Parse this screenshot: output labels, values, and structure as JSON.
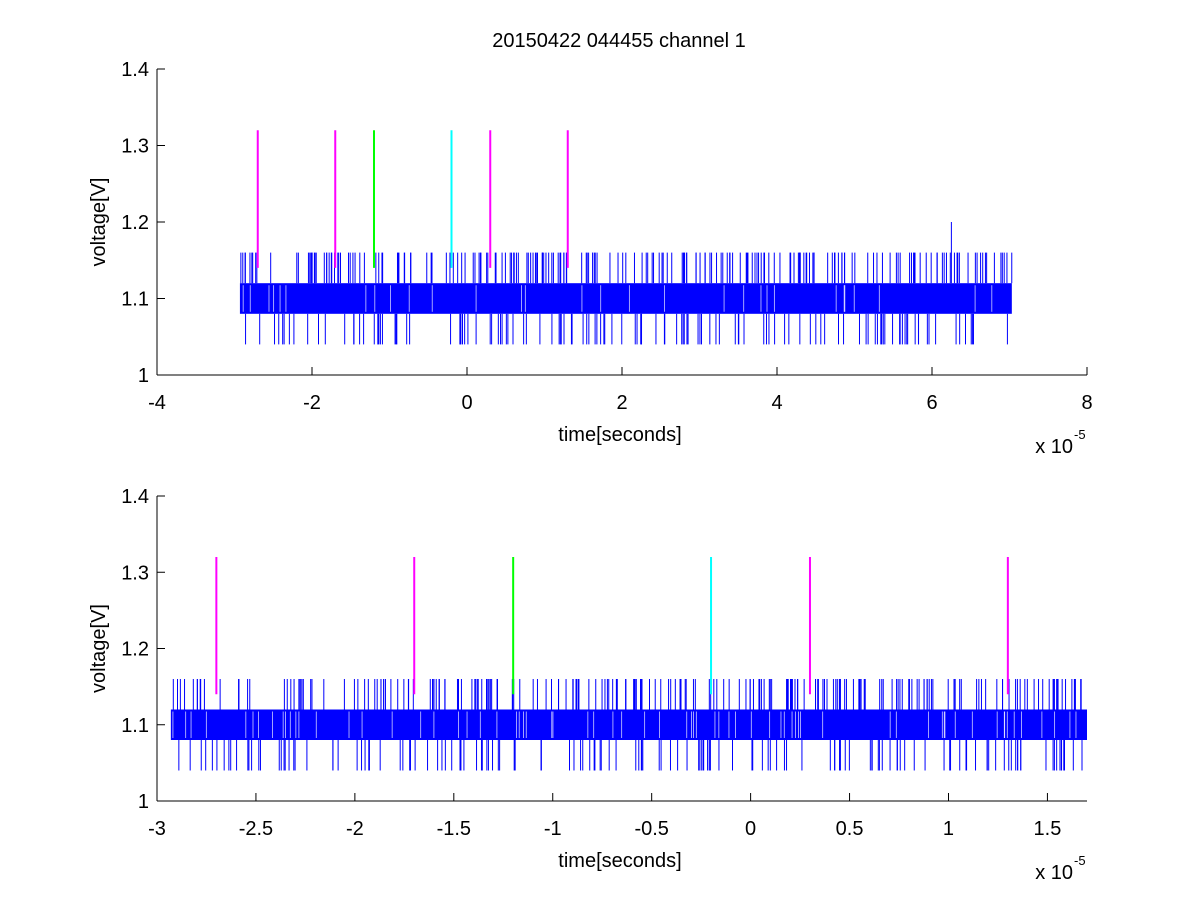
{
  "figure": {
    "title": "20150422 044455 channel 1"
  },
  "chart_data": [
    {
      "type": "line",
      "title": "20150422 044455 channel 1",
      "xlabel": "time[seconds]",
      "ylabel": "voltage[V]",
      "xscale_label": "x 10",
      "xscale_exponent": "-5",
      "xlim": [
        -4e-05,
        8e-05
      ],
      "ylim": [
        1.0,
        1.4
      ],
      "xticks": [
        -4,
        -2,
        0,
        2,
        4,
        6,
        8
      ],
      "xtick_labels": [
        "-4",
        "-2",
        "0",
        "2",
        "4",
        "6",
        "8"
      ],
      "yticks": [
        1.0,
        1.1,
        1.2,
        1.3,
        1.4
      ],
      "ytick_labels": [
        "1",
        "1.1",
        "1.2",
        "1.3",
        "1.4"
      ],
      "grid": false,
      "signal": {
        "color": "#0000ff",
        "x_start": -2.93e-05,
        "x_end": 7.03e-05,
        "band_low": 1.08,
        "band_high": 1.12,
        "upper_spike_level": 1.16,
        "lower_spike_level": 1.04,
        "max_spike": {
          "x": 6.25e-05,
          "y": 1.2
        }
      },
      "markers": [
        {
          "x": -2.7e-05,
          "y_low": 1.14,
          "y_high": 1.32,
          "color": "#ff00ff"
        },
        {
          "x": -1.7e-05,
          "y_low": 1.14,
          "y_high": 1.32,
          "color": "#ff00ff"
        },
        {
          "x": -1.2e-05,
          "y_low": 1.14,
          "y_high": 1.32,
          "color": "#00ff00"
        },
        {
          "x": -2e-06,
          "y_low": 1.14,
          "y_high": 1.32,
          "color": "#00ffff"
        },
        {
          "x": 3e-06,
          "y_low": 1.14,
          "y_high": 1.32,
          "color": "#ff00ff"
        },
        {
          "x": 1.3e-05,
          "y_low": 1.14,
          "y_high": 1.32,
          "color": "#ff00ff"
        }
      ]
    },
    {
      "type": "line",
      "title": "",
      "xlabel": "time[seconds]",
      "ylabel": "voltage[V]",
      "xscale_label": "x 10",
      "xscale_exponent": "-5",
      "xlim": [
        -3e-05,
        1.7e-05
      ],
      "ylim": [
        1.0,
        1.4
      ],
      "xticks": [
        -3,
        -2.5,
        -2,
        -1.5,
        -1,
        -0.5,
        0,
        0.5,
        1,
        1.5
      ],
      "xtick_labels": [
        "-3",
        "-2.5",
        "-2",
        "-1.5",
        "-1",
        "-0.5",
        "0",
        "0.5",
        "1",
        "1.5"
      ],
      "yticks": [
        1.0,
        1.1,
        1.2,
        1.3,
        1.4
      ],
      "ytick_labels": [
        "1",
        "1.1",
        "1.2",
        "1.3",
        "1.4"
      ],
      "grid": false,
      "signal": {
        "color": "#0000ff",
        "x_start": -2.93e-05,
        "x_end": 1.7e-05,
        "band_low": 1.08,
        "band_high": 1.12,
        "upper_spike_level": 1.16,
        "lower_spike_level": 1.04
      },
      "markers": [
        {
          "x": -2.7e-05,
          "y_low": 1.14,
          "y_high": 1.32,
          "color": "#ff00ff"
        },
        {
          "x": -1.7e-05,
          "y_low": 1.14,
          "y_high": 1.32,
          "color": "#ff00ff"
        },
        {
          "x": -1.2e-05,
          "y_low": 1.14,
          "y_high": 1.32,
          "color": "#00ff00"
        },
        {
          "x": -2e-06,
          "y_low": 1.14,
          "y_high": 1.32,
          "color": "#00ffff"
        },
        {
          "x": 3e-06,
          "y_low": 1.14,
          "y_high": 1.32,
          "color": "#ff00ff"
        },
        {
          "x": 1.3e-05,
          "y_low": 1.14,
          "y_high": 1.32,
          "color": "#ff00ff"
        }
      ]
    }
  ]
}
